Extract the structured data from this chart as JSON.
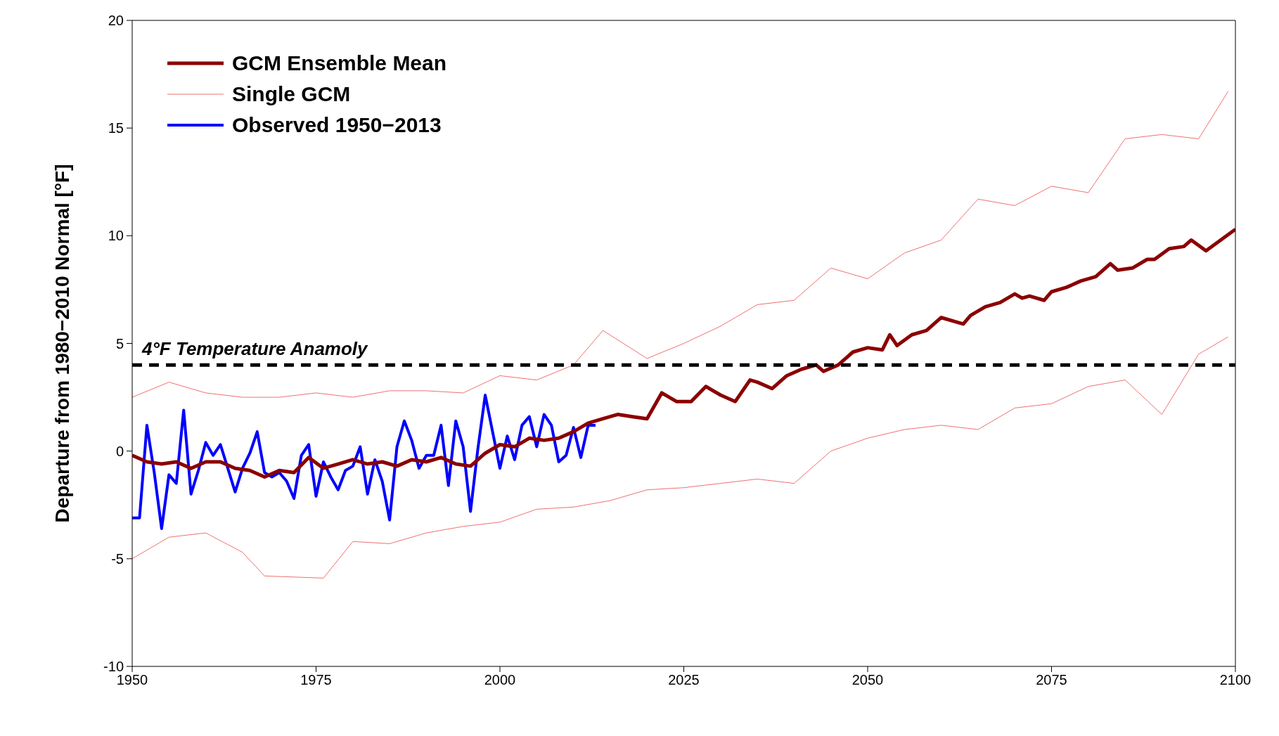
{
  "chart_data": {
    "type": "line",
    "ylabel": "Departure from 1980−2010 Normal [°F]",
    "xlim": [
      1950,
      2100
    ],
    "xticks": [
      1950,
      1975,
      2000,
      2025,
      2050,
      2075,
      2100
    ],
    "ylim": [
      -10,
      20
    ],
    "yticks": [
      -10,
      -5,
      0,
      5,
      10,
      15,
      20
    ],
    "grid": false,
    "legend": "top left",
    "marker": "none",
    "line_style": "solid",
    "ref_lines": [
      {
        "axis": "y",
        "value": 4,
        "label": "4°F Temperature Anamoly",
        "color": "#000000",
        "line_style": "dashed"
      }
    ],
    "series": [
      {
        "name": "GCM Ensemble Mean",
        "color": "#8b0000",
        "x": [
          1950,
          1952,
          1954,
          1956,
          1958,
          1960,
          1962,
          1964,
          1966,
          1968,
          1970,
          1972,
          1974,
          1976,
          1978,
          1980,
          1982,
          1984,
          1986,
          1988,
          1990,
          1992,
          1994,
          1996,
          1998,
          2000,
          2002,
          2004,
          2006,
          2008,
          2010,
          2012,
          2014,
          2016,
          2018,
          2020,
          2022,
          2024,
          2026,
          2028,
          2030,
          2032,
          2034,
          2035,
          2037,
          2039,
          2041,
          2043,
          2044,
          2046,
          2048,
          2050,
          2052,
          2053,
          2054,
          2056,
          2058,
          2060,
          2062,
          2063,
          2064,
          2066,
          2068,
          2070,
          2071,
          2072,
          2074,
          2075,
          2077,
          2079,
          2081,
          2083,
          2084,
          2086,
          2088,
          2089,
          2091,
          2093,
          2094,
          2096,
          2098,
          2100
        ],
        "values": [
          -0.2,
          -0.5,
          -0.6,
          -0.5,
          -0.8,
          -0.5,
          -0.5,
          -0.8,
          -0.9,
          -1.2,
          -0.9,
          -1.0,
          -0.3,
          -0.8,
          -0.6,
          -0.4,
          -0.6,
          -0.5,
          -0.7,
          -0.4,
          -0.5,
          -0.3,
          -0.6,
          -0.7,
          -0.1,
          0.3,
          0.2,
          0.6,
          0.5,
          0.6,
          0.9,
          1.3,
          1.5,
          1.7,
          1.6,
          1.5,
          2.7,
          2.3,
          2.3,
          3.0,
          2.6,
          2.3,
          3.3,
          3.2,
          2.9,
          3.5,
          3.8,
          4.0,
          3.7,
          4.0,
          4.6,
          4.8,
          4.7,
          5.4,
          4.9,
          5.4,
          5.6,
          6.2,
          6.0,
          5.9,
          6.3,
          6.7,
          6.9,
          7.3,
          7.1,
          7.2,
          7.0,
          7.4,
          7.6,
          7.9,
          8.1,
          8.7,
          8.4,
          8.5,
          8.9,
          8.9,
          9.4,
          9.5,
          9.8,
          9.3,
          9.8,
          10.3
        ]
      },
      {
        "name": "Single GCM",
        "color": "#f07070",
        "x": [
          1950,
          1955,
          1960,
          1965,
          1970,
          1975,
          1980,
          1985,
          1990,
          1995,
          2000,
          2005,
          2010,
          2014,
          2020,
          2025,
          2030,
          2035,
          2040,
          2045,
          2050,
          2055,
          2060,
          2065,
          2070,
          2075,
          2080,
          2085,
          2090,
          2095,
          2099
        ],
        "values": [
          2.5,
          3.2,
          2.7,
          2.5,
          2.5,
          2.7,
          2.5,
          2.8,
          2.8,
          2.7,
          3.5,
          3.3,
          4.0,
          5.6,
          4.3,
          5.0,
          5.8,
          6.8,
          7.0,
          8.5,
          8.0,
          9.2,
          9.8,
          11.7,
          11.4,
          12.3,
          12.0,
          14.5,
          14.7,
          14.5,
          16.7
        ]
      },
      {
        "color": "#f07070",
        "x": [
          1950,
          1955,
          1960,
          1965,
          1968,
          1976,
          1980,
          1985,
          1990,
          1995,
          2000,
          2005,
          2010,
          2015,
          2020,
          2025,
          2030,
          2035,
          2040,
          2045,
          2050,
          2055,
          2060,
          2065,
          2070,
          2075,
          2080,
          2085,
          2090,
          2095,
          2099
        ],
        "values": [
          -5.0,
          -4.0,
          -3.8,
          -4.7,
          -5.8,
          -5.9,
          -4.2,
          -4.3,
          -3.8,
          -3.5,
          -3.3,
          -2.7,
          -2.6,
          -2.3,
          -1.8,
          -1.7,
          -1.5,
          -1.3,
          -1.5,
          0.0,
          0.6,
          1.0,
          1.2,
          1.0,
          2.0,
          2.2,
          3.0,
          3.3,
          1.7,
          4.5,
          5.3
        ]
      },
      {
        "name": "Observed 1950−2013",
        "color": "#0000ff",
        "x": [
          1950,
          1951,
          1952,
          1953,
          1954,
          1955,
          1956,
          1957,
          1958,
          1959,
          1960,
          1961,
          1962,
          1963,
          1964,
          1965,
          1966,
          1967,
          1968,
          1969,
          1970,
          1971,
          1972,
          1973,
          1974,
          1975,
          1976,
          1977,
          1978,
          1979,
          1980,
          1981,
          1982,
          1983,
          1984,
          1985,
          1986,
          1987,
          1988,
          1989,
          1990,
          1991,
          1992,
          1993,
          1994,
          1995,
          1996,
          1997,
          1998,
          1999,
          2000,
          2001,
          2002,
          2003,
          2004,
          2005,
          2006,
          2007,
          2008,
          2009,
          2010,
          2011,
          2012,
          2013
        ],
        "values": [
          -3.1,
          -3.1,
          1.2,
          -1.0,
          -3.6,
          -1.1,
          -1.5,
          1.9,
          -2.0,
          -0.9,
          0.4,
          -0.2,
          0.3,
          -0.8,
          -1.9,
          -0.8,
          -0.1,
          0.9,
          -1.0,
          -1.2,
          -1.0,
          -1.4,
          -2.2,
          -0.2,
          0.3,
          -2.1,
          -0.5,
          -1.2,
          -1.8,
          -0.9,
          -0.7,
          0.2,
          -2.0,
          -0.4,
          -1.4,
          -3.2,
          0.2,
          1.4,
          0.5,
          -0.8,
          -0.2,
          -0.2,
          1.2,
          -1.6,
          1.4,
          0.2,
          -2.8,
          0.1,
          2.6,
          0.9,
          -0.8,
          0.7,
          -0.4,
          1.2,
          1.6,
          0.2,
          1.7,
          1.2,
          -0.5,
          -0.2,
          1.1,
          -0.3,
          1.2,
          1.2
        ]
      }
    ]
  }
}
